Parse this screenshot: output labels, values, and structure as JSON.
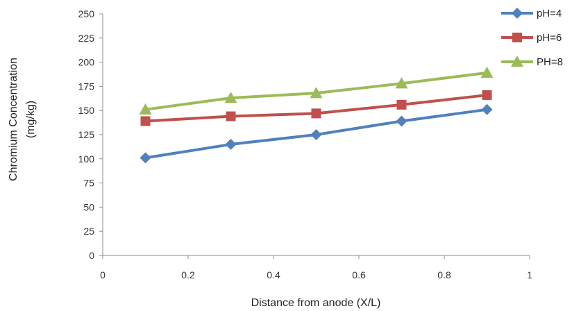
{
  "chart_data": {
    "type": "line",
    "title": "",
    "xlabel": "Distance from anode (X/L)",
    "ylabel_lines": [
      "Chromium  Concentration",
      "(mg/kg)"
    ],
    "xlim": [
      0,
      1
    ],
    "ylim": [
      0,
      250
    ],
    "xticks": [
      0,
      0.2,
      0.4,
      0.6,
      0.8,
      1
    ],
    "xtick_labels": [
      "0",
      "0.2",
      "0.4",
      "0.6",
      "0.8",
      "1"
    ],
    "yticks": [
      0,
      25,
      50,
      75,
      100,
      125,
      150,
      175,
      200,
      225,
      250
    ],
    "ytick_labels": [
      "0",
      "25",
      "50",
      "75",
      "100",
      "125",
      "150",
      "175",
      "200",
      "225",
      "250"
    ],
    "grid": false,
    "legend_position": "top-right",
    "x": [
      0.1,
      0.3,
      0.5,
      0.7,
      0.9
    ],
    "series": [
      {
        "name": "pH=4",
        "color": "#4f81bd",
        "marker": "diamond",
        "values": [
          101,
          115,
          125,
          139,
          151
        ]
      },
      {
        "name": "pH=6",
        "color": "#c0504d",
        "marker": "square",
        "values": [
          139,
          144,
          147,
          156,
          166
        ]
      },
      {
        "name": "PH=8",
        "color": "#9bbb59",
        "marker": "triangle",
        "values": [
          151,
          163,
          168,
          178,
          189
        ]
      }
    ]
  }
}
